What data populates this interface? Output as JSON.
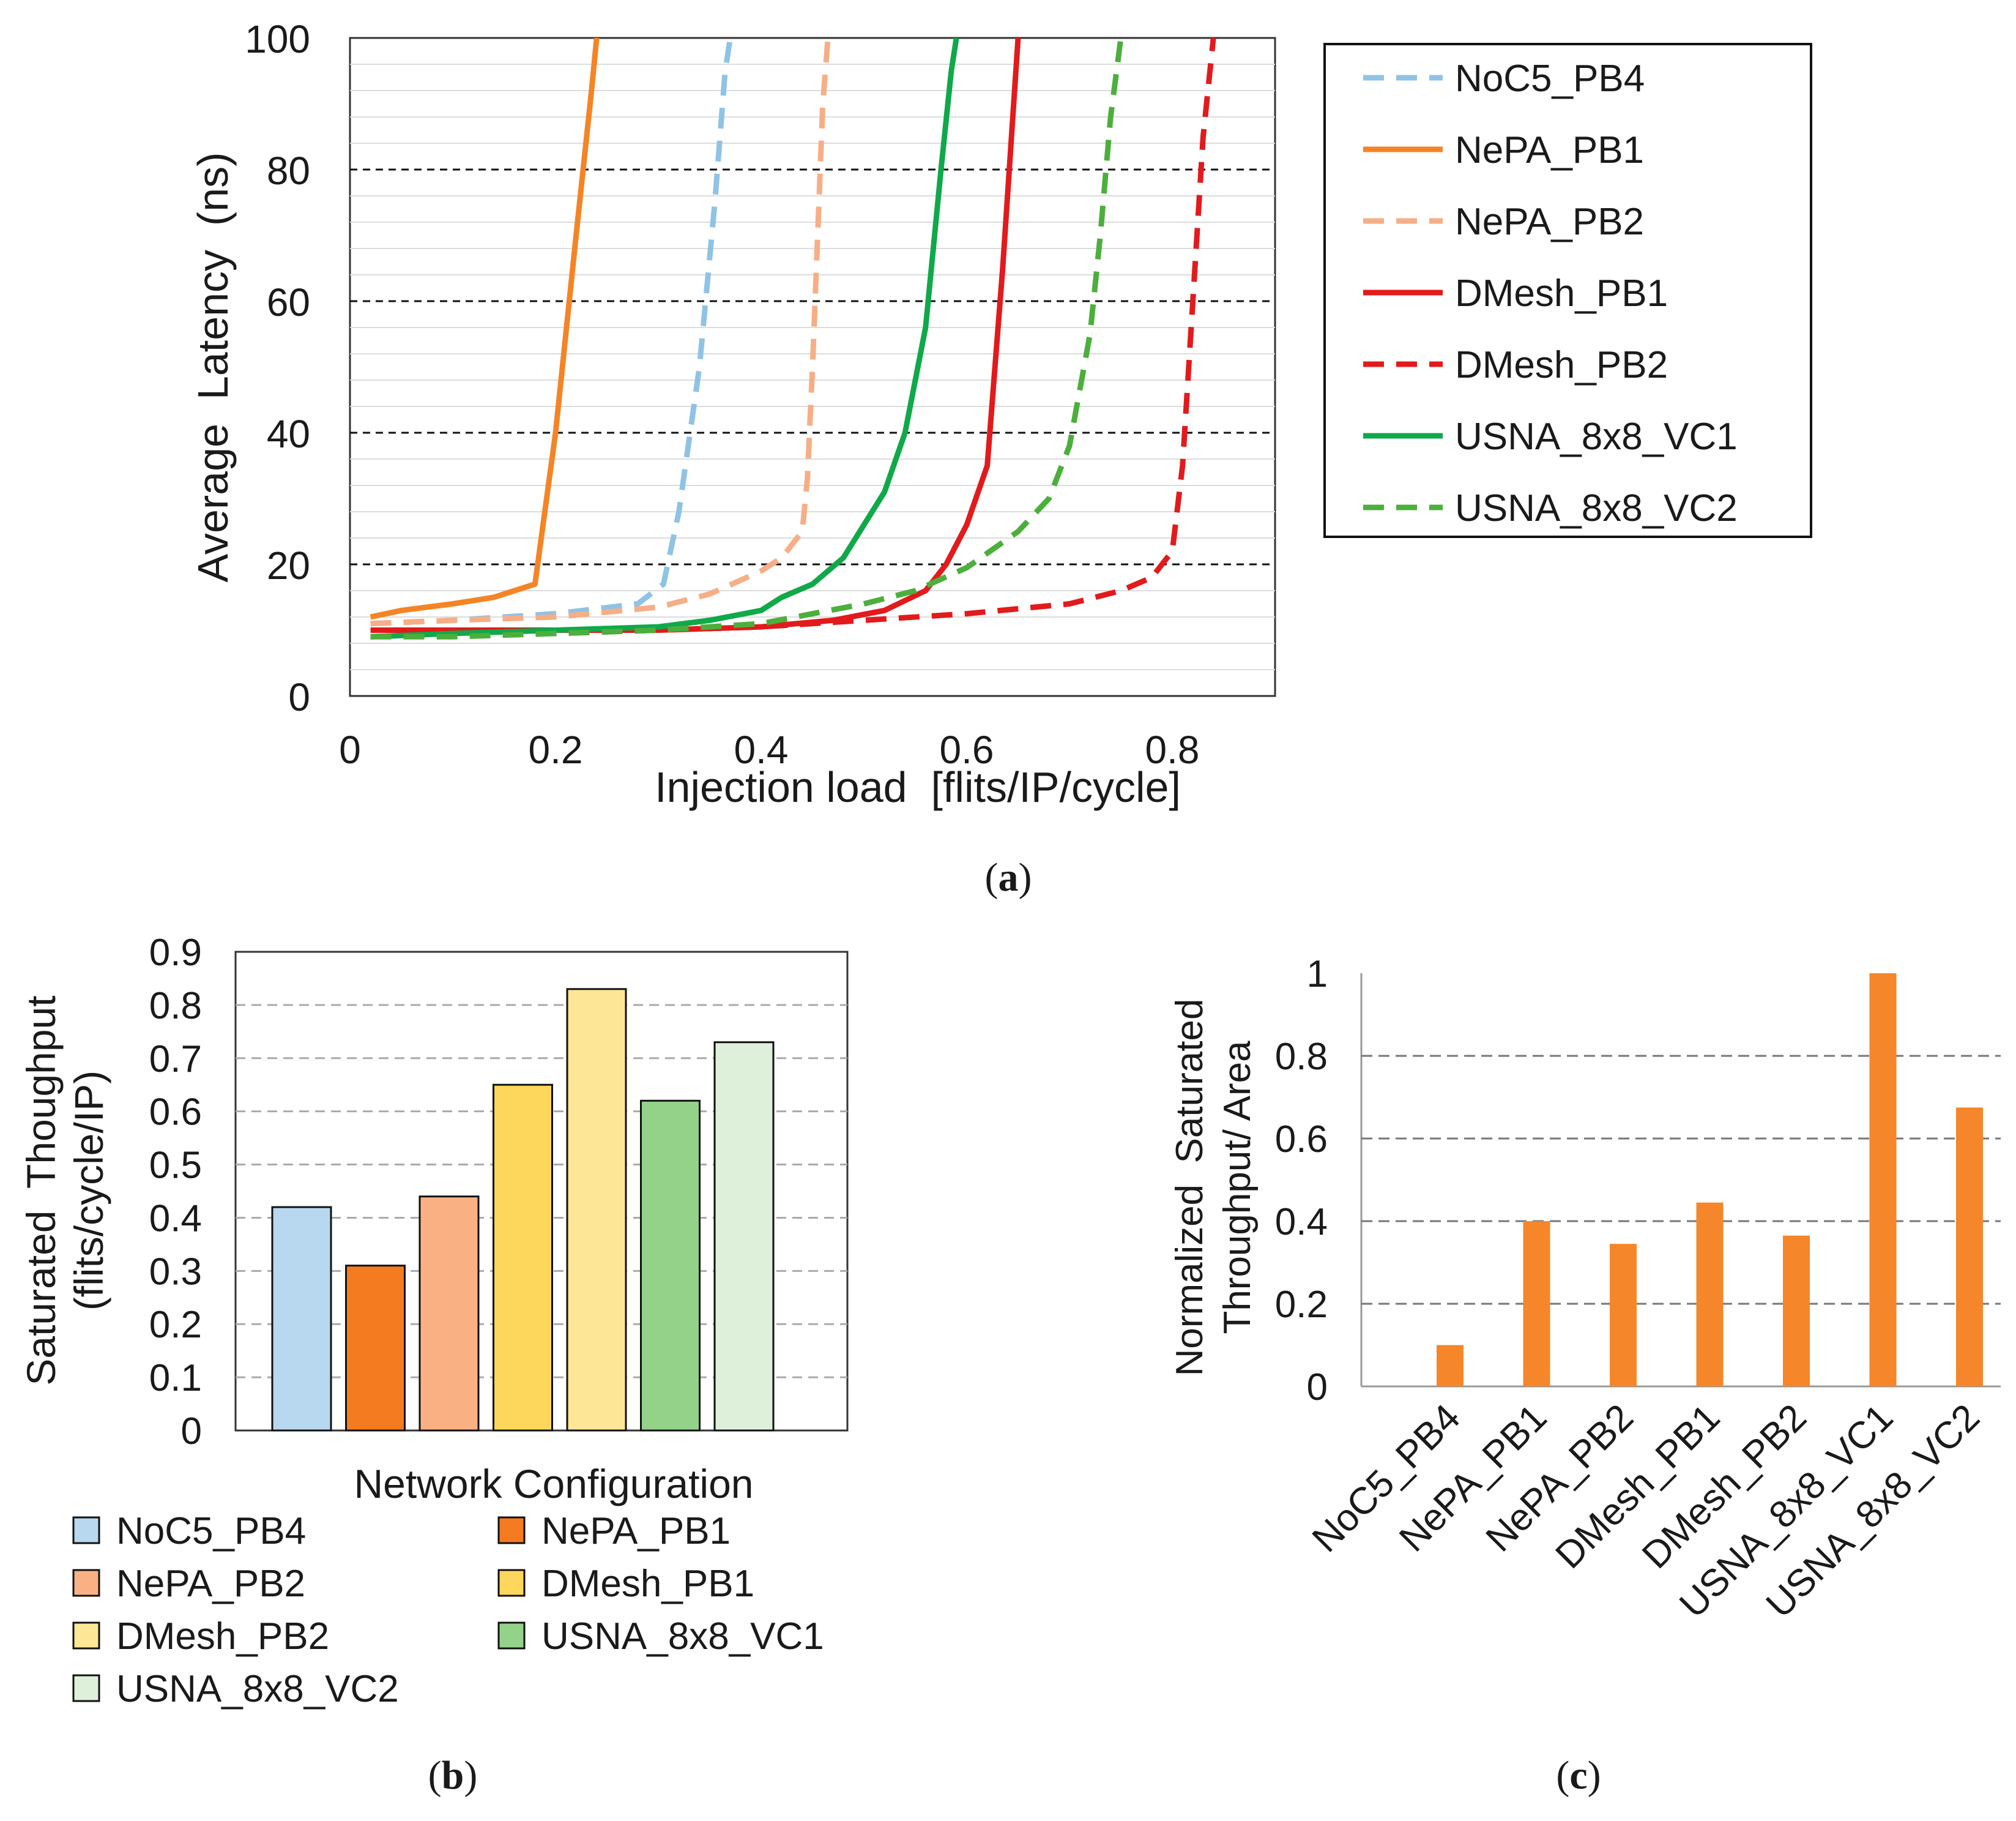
{
  "chart_data": [
    {
      "id": "a",
      "type": "line",
      "caption": "a",
      "xlabel": "Injection load  [flits/IP/cycle]",
      "ylabel": "Average  Latency  (ns)",
      "xlim": [
        0,
        0.9
      ],
      "ylim": [
        0,
        100
      ],
      "xticks": [
        0,
        0.2,
        0.4,
        0.6,
        0.8
      ],
      "xtick_labels": [
        "0",
        "0.2",
        "0.4",
        "0.6",
        "0.8"
      ],
      "yticks": [
        0,
        20,
        40,
        60,
        80,
        100
      ],
      "ytick_labels": [
        "0",
        "20",
        "40",
        "60",
        "80",
        "100"
      ],
      "major_grid": [
        20,
        40,
        60,
        80
      ],
      "minor_grid_step": 4,
      "legend_position": "right",
      "series": [
        {
          "name": "NoC5_PB4",
          "color": "#8fc3e6",
          "dashed": true,
          "x": [
            0.02,
            0.1,
            0.2,
            0.28,
            0.305,
            0.32,
            0.34,
            0.355,
            0.365,
            0.37
          ],
          "y": [
            11,
            11.5,
            12.5,
            14,
            17,
            28,
            50,
            75,
            95,
            100
          ]
        },
        {
          "name": "NePA_PB1",
          "color": "#f58426",
          "dashed": false,
          "x": [
            0.02,
            0.05,
            0.1,
            0.14,
            0.18,
            0.2,
            0.22,
            0.235,
            0.24
          ],
          "y": [
            12,
            13,
            14,
            15,
            17,
            40,
            70,
            92,
            100
          ]
        },
        {
          "name": "NePA_PB2",
          "color": "#f7ae86",
          "dashed": true,
          "x": [
            0.02,
            0.1,
            0.2,
            0.3,
            0.35,
            0.4,
            0.42,
            0.44,
            0.445,
            0.45,
            0.455,
            0.46,
            0.465
          ],
          "y": [
            11,
            11.5,
            12,
            13.5,
            15.5,
            19,
            21,
            25,
            33,
            50,
            70,
            90,
            100
          ]
        },
        {
          "name": "DMesh_PB1",
          "color": "#e31a1c",
          "dashed": false,
          "x": [
            0.02,
            0.1,
            0.2,
            0.3,
            0.4,
            0.47,
            0.52,
            0.56,
            0.58,
            0.6,
            0.62,
            0.635,
            0.65
          ],
          "y": [
            10,
            10,
            10,
            10,
            10.5,
            11.5,
            13,
            16,
            20,
            26,
            35,
            65,
            100
          ]
        },
        {
          "name": "DMesh_PB2",
          "color": "#e31a1c",
          "dashed": true,
          "x": [
            0.02,
            0.1,
            0.2,
            0.3,
            0.4,
            0.5,
            0.6,
            0.7,
            0.75,
            0.78,
            0.8,
            0.81,
            0.82,
            0.83,
            0.84
          ],
          "y": [
            9,
            9.5,
            9.5,
            10,
            10.5,
            11.5,
            12.5,
            14,
            16,
            18,
            22,
            35,
            60,
            85,
            100
          ]
        },
        {
          "name": "USNA_8x8_VC1",
          "color": "#0fa94a",
          "dashed": false,
          "x": [
            0.02,
            0.1,
            0.2,
            0.3,
            0.35,
            0.4,
            0.42,
            0.45,
            0.48,
            0.52,
            0.54,
            0.56,
            0.575,
            0.585,
            0.59
          ],
          "y": [
            9,
            9.5,
            10,
            10.5,
            11.5,
            13,
            15,
            17,
            21,
            31,
            40,
            56,
            80,
            95,
            100
          ]
        },
        {
          "name": "USNA_8x8_VC2",
          "color": "#4caf3c",
          "dashed": true,
          "x": [
            0.02,
            0.1,
            0.2,
            0.3,
            0.4,
            0.5,
            0.55,
            0.6,
            0.65,
            0.68,
            0.7,
            0.72,
            0.73,
            0.74,
            0.75
          ],
          "y": [
            9,
            9,
            9.5,
            10,
            11,
            14,
            16,
            19.5,
            25,
            30,
            38,
            55,
            70,
            88,
            100
          ]
        }
      ]
    },
    {
      "id": "b",
      "type": "bar",
      "caption": "b",
      "xlabel": "Network Configuration",
      "ylabel_line1": "Saturated  Thoughput",
      "ylabel_line2": "(flits/cycle/IP)",
      "ylim": [
        0,
        0.9
      ],
      "yticks": [
        0,
        0.1,
        0.2,
        0.3,
        0.4,
        0.5,
        0.6,
        0.7,
        0.8,
        0.9
      ],
      "ytick_labels": [
        "0",
        "0.1",
        "0.2",
        "0.3",
        "0.4",
        "0.5",
        "0.6",
        "0.7",
        "0.8",
        "0.9"
      ],
      "legend_position": "bottom",
      "categories": [
        "NoC5_PB4",
        "NePA_PB1",
        "NePA_PB2",
        "DMesh_PB1",
        "DMesh_PB2",
        "USNA_8x8_VC1",
        "USNA_8x8_VC2"
      ],
      "values": [
        0.42,
        0.31,
        0.44,
        0.65,
        0.83,
        0.62,
        0.73
      ],
      "colors": [
        "#b8d8ef",
        "#f47b20",
        "#f9b183",
        "#fdd75b",
        "#fde696",
        "#94d28a",
        "#dff0da"
      ]
    },
    {
      "id": "c",
      "type": "bar",
      "caption": "c",
      "ylabel_line1": "Normalized  Saturated",
      "ylabel_line2": "Throughput/ Area",
      "ylim": [
        0,
        1
      ],
      "yticks": [
        0,
        0.2,
        0.4,
        0.6,
        0.8,
        1
      ],
      "ytick_labels": [
        "0",
        "0.2",
        "0.4",
        "0.6",
        "0.8",
        "1"
      ],
      "categories": [
        "NoC5_PB4",
        "NePA_PB1",
        "NePA_PB2",
        "DMesh_PB1",
        "DMesh_PB2",
        "USNA_8x8_VC1",
        "USNA_8x8_VC2"
      ],
      "values": [
        0.1,
        0.4,
        0.345,
        0.445,
        0.365,
        1.0,
        0.675
      ],
      "color": "#f5862a"
    }
  ]
}
